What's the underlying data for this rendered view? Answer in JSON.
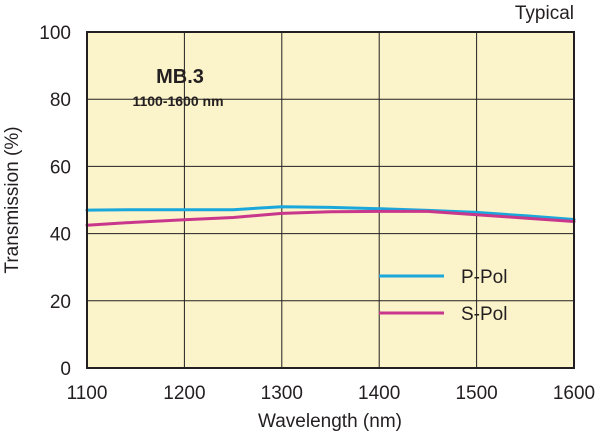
{
  "chart_data": {
    "type": "line",
    "title": "MB.3",
    "subtitle": "1100-1600 nm",
    "note": "Typical",
    "xlabel": "Wavelength (nm)",
    "ylabel": "Transmission (%)",
    "xlim": [
      1100,
      1600
    ],
    "ylim": [
      0,
      100
    ],
    "x_ticks": [
      1100,
      1200,
      1300,
      1400,
      1500,
      1600
    ],
    "y_ticks": [
      0,
      20,
      40,
      60,
      80,
      100
    ],
    "grid": true,
    "background_color": "#fbf3c9",
    "legend_position": "bottom-right",
    "series": [
      {
        "name": "P-Pol",
        "color": "#1aa7dc",
        "x": [
          1100,
          1150,
          1200,
          1250,
          1300,
          1350,
          1400,
          1450,
          1500,
          1550,
          1600
        ],
        "y": [
          47.0,
          47.1,
          47.1,
          47.1,
          48.0,
          47.8,
          47.4,
          46.9,
          46.3,
          45.3,
          44.2
        ]
      },
      {
        "name": "S-Pol",
        "color": "#c8378c",
        "x": [
          1100,
          1150,
          1200,
          1250,
          1300,
          1350,
          1400,
          1450,
          1500,
          1550,
          1600
        ],
        "y": [
          42.5,
          43.4,
          44.1,
          44.8,
          46.0,
          46.5,
          46.6,
          46.6,
          45.6,
          44.6,
          43.6
        ]
      }
    ]
  }
}
